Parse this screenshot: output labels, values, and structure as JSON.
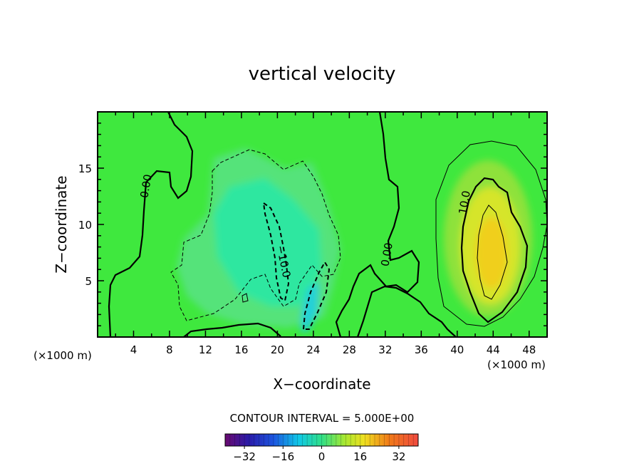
{
  "chart_data": {
    "type": "heatmap",
    "title": "vertical velocity",
    "xlabel": "X−coordinate",
    "ylabel": "Z−coordinate",
    "x_unit": "(×1000 m)",
    "x_unit_right": "(×1000 m)",
    "xlim": [
      0,
      50
    ],
    "ylim": [
      0,
      20
    ],
    "x_ticks": [
      "4",
      "8",
      "12",
      "16",
      "20",
      "24",
      "28",
      "32",
      "36",
      "40",
      "44",
      "48"
    ],
    "y_ticks": [
      "5",
      "10",
      "15"
    ],
    "contour_interval_text": "CONTOUR INTERVAL = 5.000E+00",
    "contour_labels": [
      "0.00",
      "0.00",
      "10.0",
      "−10.0"
    ],
    "colorbar": {
      "range": [
        -40,
        40
      ],
      "tick_labels": [
        "−32",
        "−16",
        "0",
        "16",
        "32"
      ]
    },
    "features": [
      {
        "name": "updraft",
        "center": [
          43.5,
          8
        ],
        "peak_value": 20
      },
      {
        "name": "downdraft",
        "center": [
          22.5,
          2.5
        ],
        "peak_value": -12
      },
      {
        "name": "weak sink region",
        "center": [
          19,
          10
        ],
        "peak_value": -8
      }
    ],
    "grid": false
  }
}
